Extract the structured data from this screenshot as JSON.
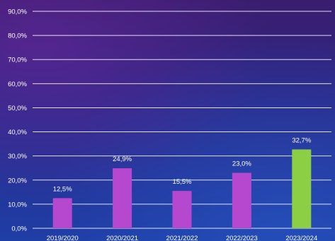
{
  "chart_data": {
    "type": "bar",
    "categories": [
      "2019/2020",
      "2020/2021",
      "2021/2022",
      "2022/2023",
      "2023/2024"
    ],
    "values": [
      12.5,
      24.9,
      15.5,
      23.0,
      32.7
    ],
    "data_labels": [
      "12,5%",
      "24,9%",
      "15,5%",
      "23,0%",
      "32,7%"
    ],
    "y_ticks": [
      0,
      10,
      20,
      30,
      40,
      50,
      60,
      70,
      80,
      90
    ],
    "y_tick_labels": [
      "0,0%",
      "10,0%",
      "20,0%",
      "30,0%",
      "40,0%",
      "50,0%",
      "60,0%",
      "70,0%",
      "80,0%",
      "90,0%"
    ],
    "ylim": [
      0,
      90
    ],
    "grid": true,
    "legend": "none",
    "colors": {
      "bar_default": "#b548cf",
      "bar_highlight": "#8ccf45",
      "gridline": "#ffffff",
      "text": "#ffffff"
    },
    "highlight_index": 4
  }
}
